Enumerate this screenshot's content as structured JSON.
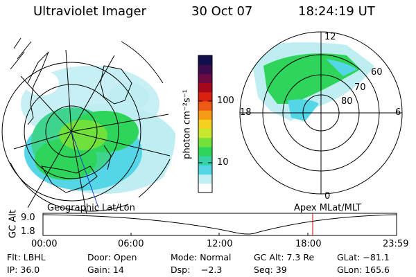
{
  "header": {
    "instrument": "Ultraviolet Imager",
    "date": "30 Oct 07",
    "time": "18:24:19 UT"
  },
  "colorbar": {
    "unit_label": "photon cm⁻²s⁻¹",
    "tick_labels": [
      "100",
      "10"
    ],
    "scale": "log",
    "colors": [
      "#ffffff",
      "#bfeff5",
      "#55d6e6",
      "#35d1a8",
      "#2fd45a",
      "#74e03a",
      "#c8e830",
      "#f2d21e",
      "#f59c14",
      "#ee5a14",
      "#d8200f",
      "#a4081a",
      "#6a0a40",
      "#3b0b4d",
      "#12104b"
    ]
  },
  "left_panel": {
    "caption": "Geographic Lat/Lon"
  },
  "right_panel": {
    "caption": "Apex MLat/MLT",
    "mlt_labels": [
      "12",
      "18",
      "6",
      "0"
    ],
    "mlat_labels": [
      "60",
      "70",
      "80"
    ]
  },
  "timeline": {
    "ylabel": "GC Alt",
    "y_ticks": [
      "9.0",
      "1.8"
    ],
    "x_ticks": [
      "00:00",
      "06:00",
      "12:00",
      "18:00",
      "23:59"
    ],
    "marker_color": "#cc0000"
  },
  "info": {
    "filter": "Flt: LBHL",
    "door": "Door: Open",
    "mode": "Mode: Normal",
    "gc_alt": "GC Alt: 7.3 Re",
    "glat": "GLat: −81.1",
    "ip": "IP: 36.0",
    "gain": "Gain: 14",
    "dsp_label": "Dsp:",
    "dsp_value": "−2.3",
    "seq": "Seq: 39",
    "glon": "GLon: 165.6"
  }
}
